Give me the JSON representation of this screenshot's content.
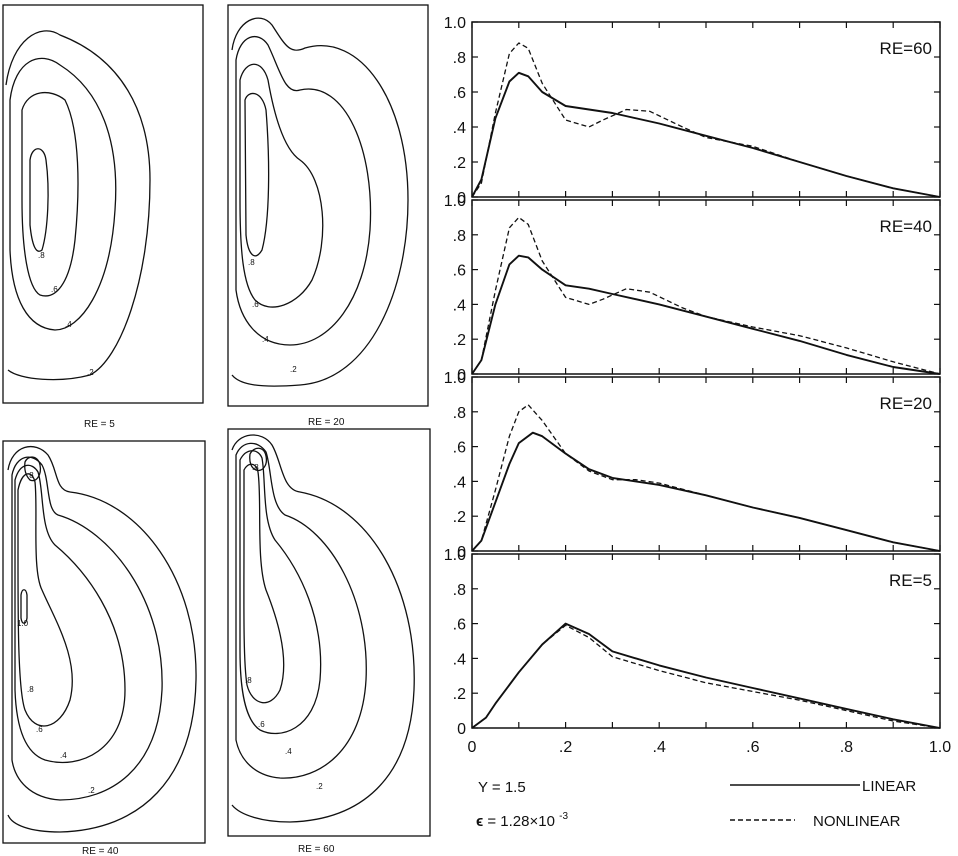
{
  "contour_panels": [
    {
      "caption": "RE = 5",
      "levels": [
        ".2",
        ".4",
        ".6",
        ".8"
      ]
    },
    {
      "caption": "RE = 20",
      "levels": [
        ".2",
        ".4",
        ".6",
        ".8"
      ]
    },
    {
      "caption": "RE = 40",
      "levels": [
        ".2",
        ".4",
        ".6",
        ".8",
        "1.0",
        ".8"
      ]
    },
    {
      "caption": "RE = 60",
      "levels": [
        ".2",
        ".4",
        ".6",
        ".8",
        ".8"
      ]
    }
  ],
  "notes": {
    "y_value": "Y = 1.5",
    "epsilon_symbol": "ϵ",
    "epsilon_value": "= 1.28×10",
    "epsilon_exp": "-3"
  },
  "legend": {
    "linear": "LINEAR",
    "nonlinear": "NONLINEAR"
  },
  "chart_data": {
    "type": "line",
    "x_ticks": [
      "0",
      ".2",
      ".4",
      ".6",
      ".8",
      "1.0"
    ],
    "y_ticks": [
      "0",
      ".2",
      ".4",
      ".6",
      ".8",
      "1.0"
    ],
    "xlim": [
      0,
      1
    ],
    "ylim": [
      0,
      1.0
    ],
    "grid": false,
    "legend_position": "bottom-right",
    "panels": [
      {
        "label": "RE=60",
        "series": [
          {
            "name": "LINEAR",
            "style": "solid",
            "x": [
              0,
              0.02,
              0.05,
              0.08,
              0.1,
              0.12,
              0.15,
              0.2,
              0.25,
              0.3,
              0.4,
              0.5,
              0.6,
              0.7,
              0.8,
              0.9,
              1.0
            ],
            "y": [
              0,
              0.1,
              0.45,
              0.66,
              0.71,
              0.69,
              0.6,
              0.52,
              0.5,
              0.48,
              0.42,
              0.35,
              0.28,
              0.2,
              0.12,
              0.05,
              0
            ]
          },
          {
            "name": "NONLINEAR",
            "style": "dashed",
            "x": [
              0,
              0.02,
              0.05,
              0.08,
              0.1,
              0.12,
              0.15,
              0.2,
              0.25,
              0.28,
              0.33,
              0.38,
              0.45,
              0.5,
              0.6,
              0.7,
              0.8,
              0.9,
              1.0
            ],
            "y": [
              0,
              0.08,
              0.48,
              0.82,
              0.88,
              0.85,
              0.65,
              0.44,
              0.4,
              0.44,
              0.5,
              0.49,
              0.4,
              0.34,
              0.29,
              0.2,
              0.12,
              0.05,
              0
            ]
          }
        ]
      },
      {
        "label": "RE=40",
        "series": [
          {
            "name": "LINEAR",
            "style": "solid",
            "x": [
              0,
              0.02,
              0.05,
              0.08,
              0.1,
              0.12,
              0.15,
              0.2,
              0.25,
              0.3,
              0.4,
              0.5,
              0.6,
              0.7,
              0.8,
              0.9,
              1.0
            ],
            "y": [
              0,
              0.08,
              0.4,
              0.63,
              0.68,
              0.67,
              0.6,
              0.51,
              0.49,
              0.46,
              0.4,
              0.33,
              0.26,
              0.19,
              0.11,
              0.04,
              0
            ]
          },
          {
            "name": "NONLINEAR",
            "style": "dashed",
            "x": [
              0,
              0.02,
              0.05,
              0.08,
              0.1,
              0.12,
              0.15,
              0.2,
              0.25,
              0.28,
              0.33,
              0.38,
              0.45,
              0.5,
              0.6,
              0.7,
              0.8,
              0.9,
              1.0
            ],
            "y": [
              0,
              0.08,
              0.48,
              0.84,
              0.9,
              0.86,
              0.65,
              0.44,
              0.4,
              0.43,
              0.49,
              0.47,
              0.38,
              0.33,
              0.27,
              0.22,
              0.15,
              0.07,
              0
            ]
          }
        ]
      },
      {
        "label": "RE=20",
        "series": [
          {
            "name": "LINEAR",
            "style": "solid",
            "x": [
              0,
              0.02,
              0.05,
              0.08,
              0.1,
              0.13,
              0.15,
              0.2,
              0.25,
              0.3,
              0.35,
              0.4,
              0.5,
              0.6,
              0.7,
              0.8,
              0.9,
              1.0
            ],
            "y": [
              0,
              0.06,
              0.28,
              0.5,
              0.62,
              0.68,
              0.66,
              0.56,
              0.47,
              0.42,
              0.4,
              0.38,
              0.32,
              0.25,
              0.19,
              0.12,
              0.05,
              0
            ]
          },
          {
            "name": "NONLINEAR",
            "style": "dashed",
            "x": [
              0,
              0.02,
              0.05,
              0.08,
              0.1,
              0.12,
              0.15,
              0.2,
              0.25,
              0.3,
              0.35,
              0.4,
              0.5,
              0.6,
              0.7,
              0.8,
              0.9,
              1.0
            ],
            "y": [
              0,
              0.06,
              0.35,
              0.66,
              0.8,
              0.84,
              0.75,
              0.56,
              0.46,
              0.41,
              0.41,
              0.39,
              0.32,
              0.25,
              0.19,
              0.12,
              0.05,
              0
            ]
          }
        ]
      },
      {
        "label": "RE=5",
        "series": [
          {
            "name": "LINEAR",
            "style": "solid",
            "x": [
              0,
              0.03,
              0.05,
              0.1,
              0.15,
              0.2,
              0.25,
              0.3,
              0.4,
              0.5,
              0.6,
              0.7,
              0.8,
              0.9,
              1.0
            ],
            "y": [
              0,
              0.06,
              0.14,
              0.32,
              0.48,
              0.6,
              0.54,
              0.44,
              0.36,
              0.29,
              0.23,
              0.17,
              0.11,
              0.05,
              0
            ]
          },
          {
            "name": "NONLINEAR",
            "style": "dashed",
            "x": [
              0,
              0.03,
              0.05,
              0.1,
              0.15,
              0.2,
              0.25,
              0.3,
              0.4,
              0.5,
              0.6,
              0.7,
              0.8,
              0.9,
              1.0
            ],
            "y": [
              0,
              0.06,
              0.14,
              0.32,
              0.48,
              0.59,
              0.52,
              0.41,
              0.33,
              0.26,
              0.21,
              0.16,
              0.1,
              0.04,
              0
            ]
          }
        ]
      }
    ]
  }
}
